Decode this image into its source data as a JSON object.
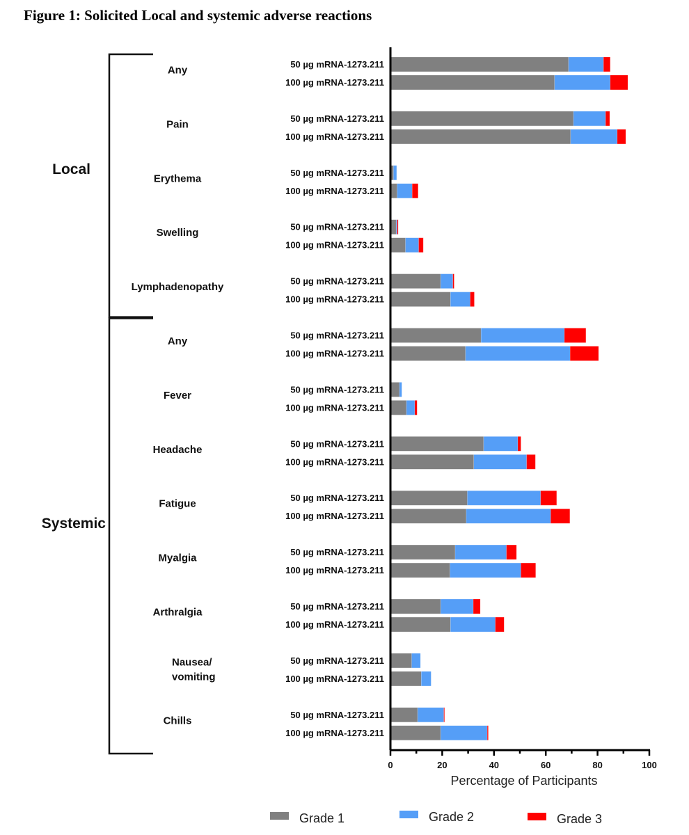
{
  "chart_data": {
    "type": "bar",
    "orientation": "horizontal",
    "stacked": true,
    "title": "Figure 1: Solicited Local and systemic adverse reactions",
    "xlabel": "Percentage of Participants",
    "ylabel": "",
    "xlim": [
      0,
      100
    ],
    "x_ticks": [
      0,
      20,
      40,
      60,
      80,
      100
    ],
    "x_minor_step": 10,
    "grid": false,
    "legend_position": "bottom",
    "series_labels": [
      "50 µg mRNA-1273.211",
      "100 µg mRNA-1273.211"
    ],
    "legend": [
      {
        "name": "Grade 1",
        "color": "#808080"
      },
      {
        "name": "Grade  2",
        "color": "#559ef7"
      },
      {
        "name": "Grade 3",
        "color": "#ff0000"
      }
    ],
    "groups": [
      {
        "name": "Local",
        "categories": [
          {
            "label": [
              "Any"
            ],
            "doses": [
              {
                "dose": "50 µg mRNA-1273.211",
                "grade1": 68.8,
                "grade2": 13.5,
                "grade3": 2.6
              },
              {
                "dose": "100 µg mRNA-1273.211",
                "grade1": 63.4,
                "grade2": 21.5,
                "grade3": 6.8
              }
            ]
          },
          {
            "label": [
              "Pain"
            ],
            "doses": [
              {
                "dose": "50 µg mRNA-1273.211",
                "grade1": 70.7,
                "grade2": 12.4,
                "grade3": 1.6
              },
              {
                "dose": "100 µg mRNA-1273.211",
                "grade1": 69.6,
                "grade2": 18.0,
                "grade3": 3.3
              }
            ]
          },
          {
            "label": [
              "Erythema"
            ],
            "doses": [
              {
                "dose": "50 µg mRNA-1273.211",
                "grade1": 1.2,
                "grade2": 1.2,
                "grade3": 0.0
              },
              {
                "dose": "100 µg mRNA-1273.211",
                "grade1": 2.6,
                "grade2": 5.8,
                "grade3": 2.3
              }
            ]
          },
          {
            "label": [
              "Swelling"
            ],
            "doses": [
              {
                "dose": "50 µg mRNA-1273.211",
                "grade1": 2.2,
                "grade2": 0.4,
                "grade3": 0.4
              },
              {
                "dose": "100 µg mRNA-1273.211",
                "grade1": 5.8,
                "grade2": 5.1,
                "grade3": 1.8
              }
            ]
          },
          {
            "label": [
              "Lymphadenopathy"
            ],
            "doses": [
              {
                "dose": "50 µg mRNA-1273.211",
                "grade1": 19.4,
                "grade2": 4.7,
                "grade3": 0.5
              },
              {
                "dose": "100 µg mRNA-1273.211",
                "grade1": 23.2,
                "grade2": 7.6,
                "grade3": 1.6
              }
            ]
          }
        ]
      },
      {
        "name": "Systemic",
        "categories": [
          {
            "label": [
              "Any"
            ],
            "doses": [
              {
                "dose": "50 µg mRNA-1273.211",
                "grade1": 35.0,
                "grade2": 32.2,
                "grade3": 8.3
              },
              {
                "dose": "100 µg mRNA-1273.211",
                "grade1": 29.0,
                "grade2": 40.4,
                "grade3": 11.0
              }
            ]
          },
          {
            "label": [
              "Fever"
            ],
            "doses": [
              {
                "dose": "50 µg mRNA-1273.211",
                "grade1": 3.5,
                "grade2": 0.9,
                "grade3": 0.0
              },
              {
                "dose": "100 µg mRNA-1273.211",
                "grade1": 6.2,
                "grade2": 3.2,
                "grade3": 0.9
              }
            ]
          },
          {
            "label": [
              "Headache"
            ],
            "doses": [
              {
                "dose": "50 µg mRNA-1273.211",
                "grade1": 36.0,
                "grade2": 13.2,
                "grade3": 1.2
              },
              {
                "dose": "100 µg mRNA-1273.211",
                "grade1": 32.2,
                "grade2": 20.4,
                "grade3": 3.4
              }
            ]
          },
          {
            "label": [
              "Fatigue"
            ],
            "doses": [
              {
                "dose": "50 µg mRNA-1273.211",
                "grade1": 29.7,
                "grade2": 28.3,
                "grade3": 6.2
              },
              {
                "dose": "100 µg mRNA-1273.211",
                "grade1": 29.3,
                "grade2": 32.6,
                "grade3": 7.4
              }
            ]
          },
          {
            "label": [
              "Myalgia"
            ],
            "doses": [
              {
                "dose": "50 µg mRNA-1273.211",
                "grade1": 25.0,
                "grade2": 19.8,
                "grade3": 3.9
              },
              {
                "dose": "100 µg mRNA-1273.211",
                "grade1": 23.0,
                "grade2": 27.4,
                "grade3": 5.7
              }
            ]
          },
          {
            "label": [
              "Arthralgia"
            ],
            "doses": [
              {
                "dose": "50 µg mRNA-1273.211",
                "grade1": 19.4,
                "grade2": 12.6,
                "grade3": 2.7
              },
              {
                "dose": "100 µg mRNA-1273.211",
                "grade1": 23.2,
                "grade2": 17.3,
                "grade3": 3.4
              }
            ]
          },
          {
            "label": [
              "Nausea/",
              "vomiting"
            ],
            "doses": [
              {
                "dose": "50 µg mRNA-1273.211",
                "grade1": 8.2,
                "grade2": 3.4,
                "grade3": 0.0
              },
              {
                "dose": "100 µg mRNA-1273.211",
                "grade1": 11.9,
                "grade2": 3.8,
                "grade3": 0.0
              }
            ]
          },
          {
            "label": [
              "Chills"
            ],
            "doses": [
              {
                "dose": "50 µg mRNA-1273.211",
                "grade1": 10.5,
                "grade2": 10.1,
                "grade3": 0.3
              },
              {
                "dose": "100 µg mRNA-1273.211",
                "grade1": 19.4,
                "grade2": 18.0,
                "grade3": 0.4
              }
            ]
          }
        ]
      }
    ]
  }
}
